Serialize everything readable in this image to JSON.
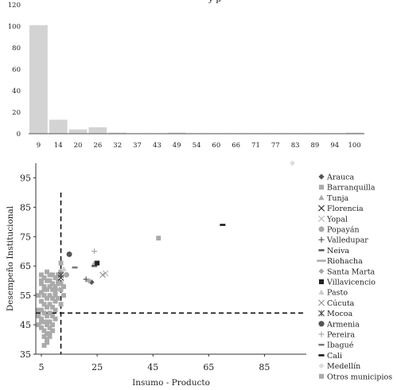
{
  "chart_data": [
    {
      "type": "bar",
      "title": "y    p",
      "categories": [
        "9",
        "14",
        "20",
        "26",
        "32",
        "37",
        "43",
        "49",
        "54",
        "60",
        "66",
        "71",
        "77",
        "83",
        "89",
        "94",
        "100"
      ],
      "values": [
        101,
        13,
        4,
        6,
        1,
        0.5,
        0.5,
        1,
        0.5,
        0.5,
        0.5,
        0.5,
        0.5,
        0.5,
        0.5,
        0.5,
        1
      ],
      "yticks": [
        "0",
        "20",
        "40",
        "60",
        "80",
        "100",
        "120"
      ],
      "ylim": [
        0,
        120
      ],
      "colors": {
        "bar": "#d3d3d3",
        "axis": "#555555"
      }
    },
    {
      "type": "scatter",
      "xlabel": "Insumo - Producto",
      "ylabel": "Desempeño Institucional",
      "xlim": [
        3,
        100
      ],
      "ylim": [
        35,
        100
      ],
      "xticks": [
        "5",
        "25",
        "45",
        "65",
        "85"
      ],
      "yticks": [
        "35",
        "45",
        "55",
        "65",
        "75",
        "85",
        "95"
      ],
      "reference_lines": {
        "x": 12,
        "y": 49
      },
      "series": [
        {
          "name": "Arauca",
          "marker": "diamond",
          "color": "#555555",
          "points": [
            [
              23,
              59.5
            ]
          ]
        },
        {
          "name": "Barranquilla",
          "marker": "square",
          "color": "#aaaaaa",
          "points": [
            [
              47,
              74.5
            ]
          ]
        },
        {
          "name": "Tunja",
          "marker": "triangle",
          "color": "#aaaaaa",
          "points": [
            [
              24,
              66
            ]
          ]
        },
        {
          "name": "Florencia",
          "marker": "x",
          "color": "#333333",
          "points": [
            [
              12,
              61
            ]
          ]
        },
        {
          "name": "Yopal",
          "marker": "x",
          "color": "#bbbbbb",
          "points": [
            [
              28,
              62.5
            ]
          ]
        },
        {
          "name": "Popayán",
          "marker": "circle",
          "color": "#aaaaaa",
          "points": [
            [
              14,
              62
            ]
          ]
        },
        {
          "name": "Valledupar",
          "marker": "plus",
          "color": "#555555",
          "points": [
            [
              21,
              60.5
            ]
          ]
        },
        {
          "name": "Neiva",
          "marker": "dash",
          "color": "#555555",
          "points": [
            [
              24,
              65
            ]
          ]
        },
        {
          "name": "Riohacha",
          "marker": "longdash",
          "color": "#aaaaaa",
          "points": [
            [
              10,
              57
            ]
          ]
        },
        {
          "name": "Santa Marta",
          "marker": "diamond",
          "color": "#aaaaaa",
          "points": [
            [
              22,
              60
            ]
          ]
        },
        {
          "name": "Villavicencio",
          "marker": "square",
          "color": "#222222",
          "points": [
            [
              25,
              66
            ]
          ]
        },
        {
          "name": "Pasto",
          "marker": "triangle",
          "color": "#cccccc",
          "points": [
            [
              13,
              64
            ]
          ]
        },
        {
          "name": "Cúcuta",
          "marker": "x",
          "color": "#999999",
          "points": [
            [
              27,
              62
            ]
          ]
        },
        {
          "name": "Mocoa",
          "marker": "star",
          "color": "#555555",
          "points": [
            [
              12,
              62
            ]
          ]
        },
        {
          "name": "Armenia",
          "marker": "circle",
          "color": "#555555",
          "points": [
            [
              15,
              69
            ]
          ]
        },
        {
          "name": "Pereira",
          "marker": "plus",
          "color": "#aaaaaa",
          "points": [
            [
              24,
              70
            ]
          ]
        },
        {
          "name": "Ibagué",
          "marker": "dash",
          "color": "#777777",
          "points": [
            [
              17,
              64.5
            ]
          ]
        },
        {
          "name": "Cali",
          "marker": "dash",
          "color": "#111111",
          "points": [
            [
              70,
              79
            ]
          ]
        },
        {
          "name": "Medellín",
          "marker": "diamond",
          "color": "#dddddd",
          "points": [
            [
              95,
              100
            ]
          ]
        },
        {
          "name": "Otros municipios",
          "marker": "square",
          "color": "#aaaaaa",
          "points": [
            [
              5,
              59
            ],
            [
              6,
              58
            ],
            [
              7,
              57
            ],
            [
              5,
              56
            ],
            [
              6,
              55
            ],
            [
              7,
              54
            ],
            [
              5,
              53
            ],
            [
              6,
              52
            ],
            [
              7,
              51
            ],
            [
              5,
              50
            ],
            [
              6,
              49
            ],
            [
              7,
              48
            ],
            [
              5,
              47
            ],
            [
              6,
              46
            ],
            [
              7,
              45
            ],
            [
              5,
              44
            ],
            [
              6,
              43
            ],
            [
              7,
              42
            ],
            [
              6,
              41
            ],
            [
              7,
              40
            ],
            [
              8,
              58
            ],
            [
              9,
              57
            ],
            [
              10,
              56
            ],
            [
              8,
              55
            ],
            [
              9,
              54
            ],
            [
              10,
              53
            ],
            [
              8,
              52
            ],
            [
              9,
              51
            ],
            [
              10,
              50
            ],
            [
              8,
              49
            ],
            [
              9,
              48
            ],
            [
              10,
              47
            ],
            [
              8,
              46
            ],
            [
              9,
              45
            ],
            [
              8,
              44
            ],
            [
              9,
              43
            ],
            [
              8,
              42
            ],
            [
              11,
              60
            ],
            [
              12,
              63
            ],
            [
              12,
              66
            ],
            [
              11,
              62
            ],
            [
              8,
              60
            ],
            [
              9,
              59
            ],
            [
              10,
              58
            ],
            [
              8,
              62
            ],
            [
              6,
              61
            ],
            [
              7,
              60
            ],
            [
              5,
              60
            ],
            [
              6,
              57
            ],
            [
              10,
              55
            ],
            [
              12,
              52
            ],
            [
              11,
              54
            ],
            [
              13,
              55
            ],
            [
              12,
              57
            ],
            [
              13,
              58
            ],
            [
              5,
              62
            ],
            [
              4,
              55
            ],
            [
              4,
              50
            ],
            [
              4,
              48
            ],
            [
              4,
              45
            ],
            [
              7,
              63
            ],
            [
              9,
              62
            ],
            [
              10,
              61
            ],
            [
              11,
              59
            ],
            [
              12,
              59
            ],
            [
              7,
              39
            ],
            [
              8,
              41
            ],
            [
              6,
              38
            ],
            [
              5,
              46
            ],
            [
              7,
              46
            ]
          ]
        }
      ]
    }
  ]
}
